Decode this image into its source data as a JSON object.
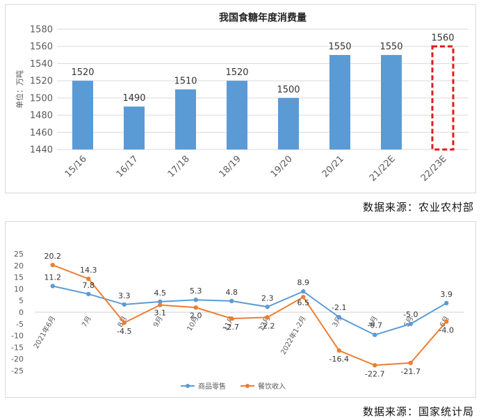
{
  "source_top": "数据来源：农业农村部",
  "source_bottom": "数据来源：国家统计局",
  "colors": {
    "bar": "#5b9bd5",
    "estimate": "#e31a1c",
    "retail": "#5b9bd5",
    "catering": "#ed7d31",
    "grid": "#d9d9d9",
    "axis_text": "#595959"
  },
  "chart_data": [
    {
      "type": "bar",
      "title": "我国食糖年度消费量",
      "ylabel": "单位：万吨",
      "ylim": [
        1440,
        1580
      ],
      "yticks": [
        1440,
        1460,
        1480,
        1500,
        1520,
        1540,
        1560,
        1580
      ],
      "grid": true,
      "categories": [
        "15/16",
        "16/17",
        "17/18",
        "18/19",
        "19/20",
        "20/21",
        "21/22E",
        "22/23E"
      ],
      "values": [
        1520,
        1490,
        1510,
        1520,
        1500,
        1550,
        1550,
        1560
      ],
      "value_labels": [
        "1520",
        "1490",
        "1510",
        "1520",
        "1500",
        "1550",
        "1550",
        "1560"
      ],
      "estimate_index": 7
    },
    {
      "type": "line",
      "ylim": [
        -25,
        25
      ],
      "yticks": [
        25,
        20,
        15,
        10,
        5,
        0,
        -5,
        -10,
        -15,
        -20,
        -25
      ],
      "grid": false,
      "legend_position": "bottom",
      "categories": [
        "2021年6月",
        "7月",
        "8月",
        "9月",
        "10月",
        "11月",
        "12月",
        "2022年1-2月",
        "3月",
        "4月",
        "5月",
        "6月"
      ],
      "series": [
        {
          "name": "商品零售",
          "values": [
            11.2,
            7.8,
            3.3,
            4.5,
            5.3,
            4.8,
            2.3,
            8.9,
            -2.1,
            -9.7,
            -5.0,
            3.9
          ],
          "labels": [
            "11.2",
            "7.8",
            "3.3",
            "4.5",
            "5.3",
            "4.8",
            "2.3",
            "8.9",
            "-2.1",
            "-9.7",
            "-5.0",
            "3.9"
          ]
        },
        {
          "name": "餐饮收入",
          "values": [
            20.2,
            14.3,
            -4.5,
            3.1,
            2.0,
            -2.7,
            -2.2,
            6.5,
            -16.4,
            -22.7,
            -21.7,
            -4.0
          ],
          "labels": [
            "20.2",
            "14.3",
            "-4.5",
            "3.1",
            "2.0",
            "-2.7",
            "-2.2",
            "6.5",
            "-16.4",
            "-22.7",
            "-21.7",
            "-4.0"
          ]
        }
      ]
    }
  ]
}
